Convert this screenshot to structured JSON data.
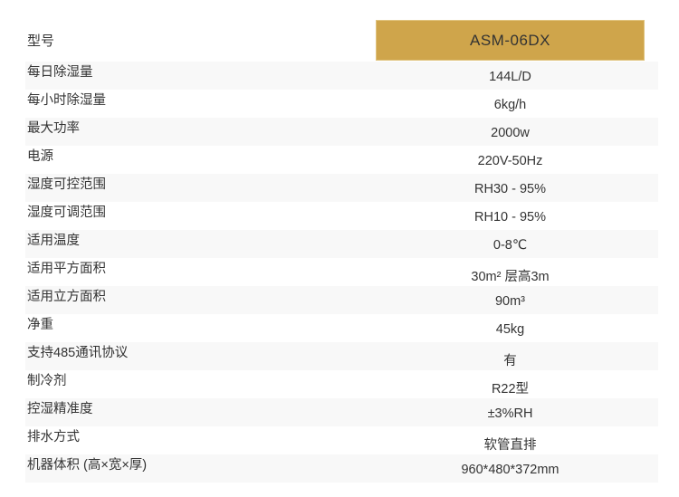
{
  "header": {
    "label": "型号",
    "value": "ASM-06DX",
    "accent_color": "#cfa54b"
  },
  "rows": [
    {
      "label": "每日除湿量",
      "value": "144L/D"
    },
    {
      "label": "每小时除湿量",
      "value": "6kg/h"
    },
    {
      "label": "最大功率",
      "value": "2000w"
    },
    {
      "label": "电源",
      "value": "220V-50Hz"
    },
    {
      "label": "湿度可控范围",
      "value": "RH30 - 95%"
    },
    {
      "label": "湿度可调范围",
      "value": "RH10 - 95%"
    },
    {
      "label": "适用温度",
      "value": "0-8℃"
    },
    {
      "label": "适用平方面积",
      "value": "30m² 层高3m"
    },
    {
      "label": "适用立方面积",
      "value": "90m³"
    },
    {
      "label": "净重",
      "value": "45kg"
    },
    {
      "label": "支持485通讯协议",
      "value": "有"
    },
    {
      "label": "制冷剂",
      "value": "R22型"
    },
    {
      "label": "控湿精准度",
      "value": "±3%RH"
    },
    {
      "label": "排水方式",
      "value": "软管直排"
    },
    {
      "label": "机器体积 (高×宽×厚)",
      "value": "960*480*372mm"
    }
  ]
}
